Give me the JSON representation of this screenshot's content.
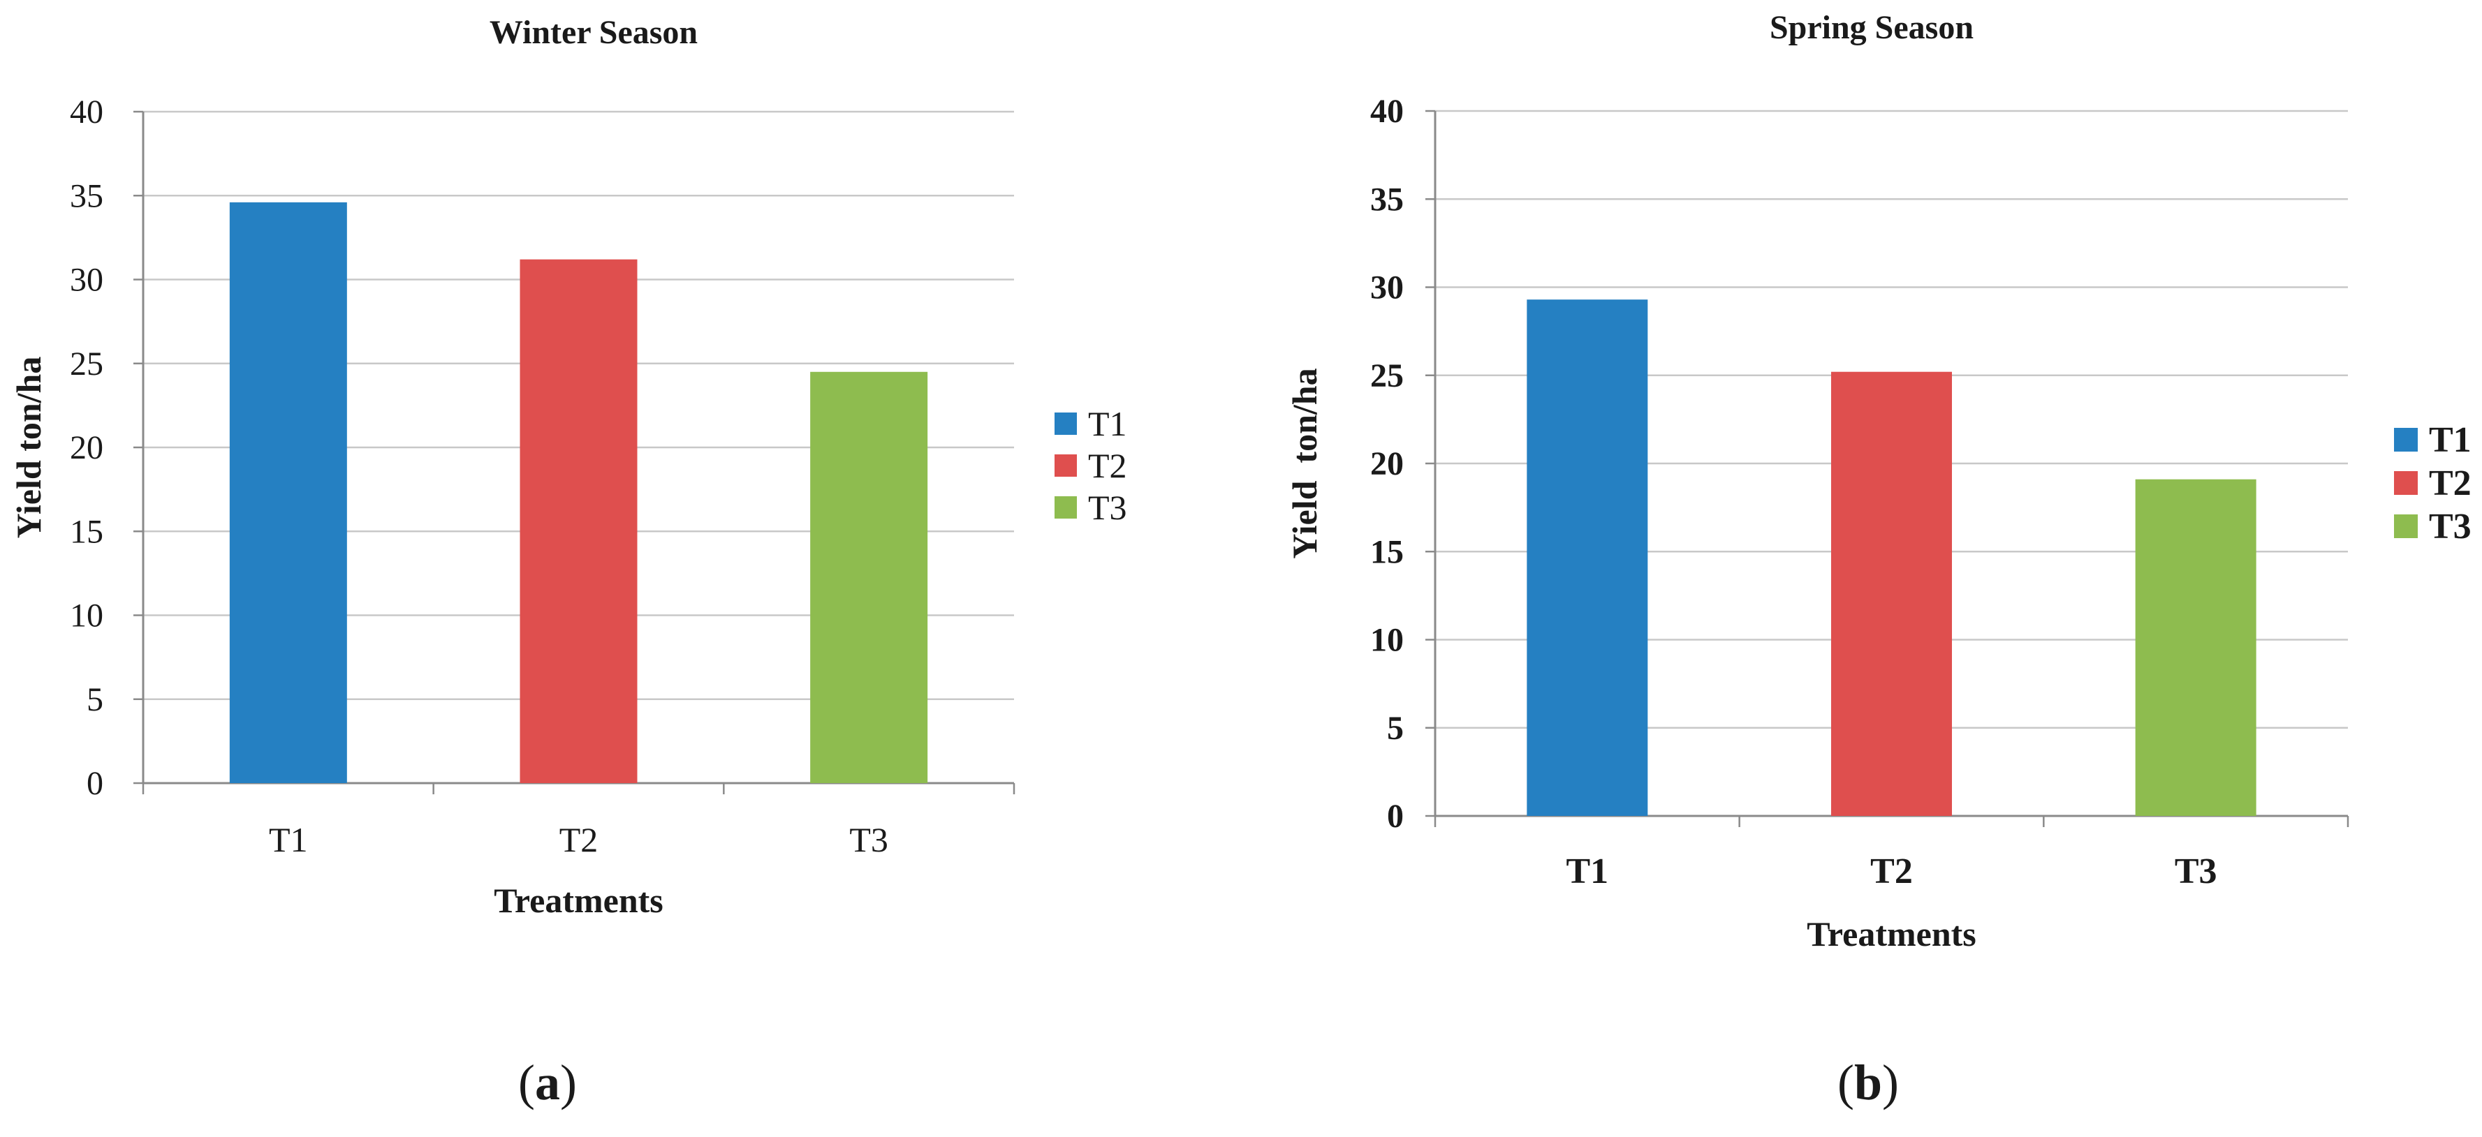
{
  "chart_data": [
    {
      "type": "bar",
      "title": "Winter Season",
      "xlabel": "Treatments",
      "ylabel": "Yield ton/ha",
      "categories": [
        "T1",
        "T2",
        "T3"
      ],
      "values": [
        34.6,
        31.2,
        24.5
      ],
      "bar_colors": [
        "#2580C2",
        "#DF4F4E",
        "#8EBC4F"
      ],
      "ylim": [
        0,
        40
      ],
      "yticks": [
        "0",
        "5",
        "10",
        "15",
        "20",
        "25",
        "30",
        "35",
        "40"
      ],
      "legend": [
        "T1",
        "T2",
        "T3"
      ],
      "legend_position": "right",
      "grid": true,
      "caption": "a"
    },
    {
      "type": "bar",
      "title": "Spring Season",
      "xlabel": "Treatments",
      "ylabel": "Yield  ton/ha",
      "categories": [
        "T1",
        "T2",
        "T3"
      ],
      "values": [
        29.3,
        25.2,
        19.1
      ],
      "bar_colors": [
        "#2580C2",
        "#DF4F4E",
        "#8EBC4F"
      ],
      "ylim": [
        0,
        40
      ],
      "yticks": [
        "0",
        "5",
        "10",
        "15",
        "20",
        "25",
        "30",
        "35",
        "40"
      ],
      "legend": [
        "T1",
        "T2",
        "T3"
      ],
      "legend_position": "right",
      "grid": true,
      "caption": "b"
    }
  ]
}
